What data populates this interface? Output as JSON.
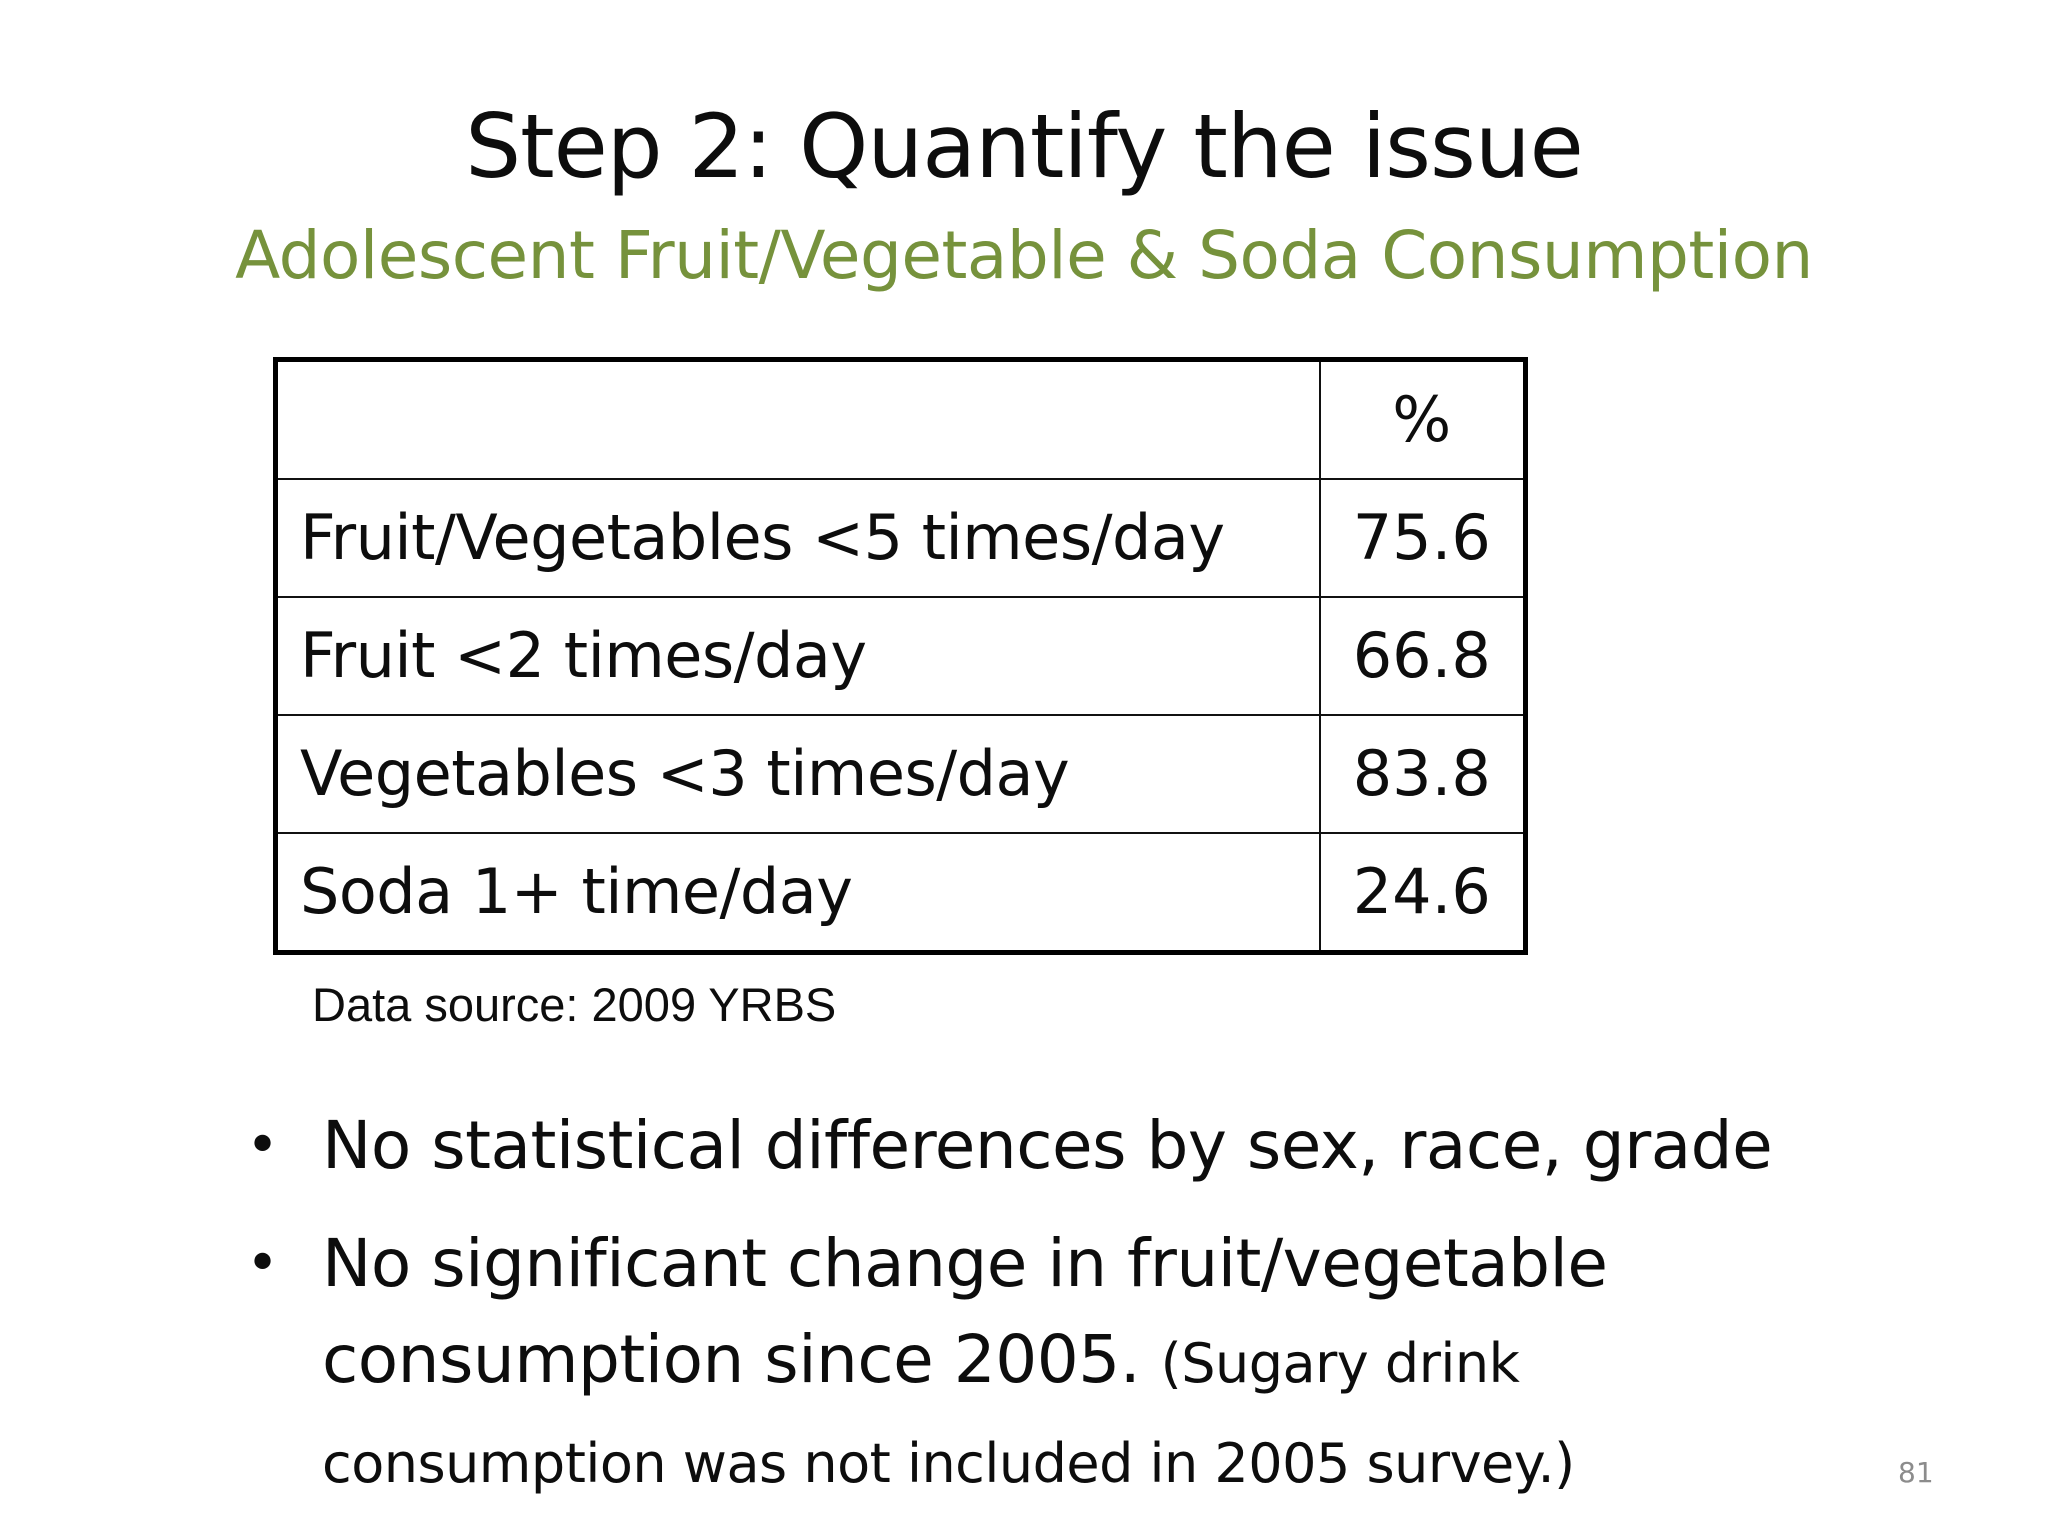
{
  "slide": {
    "title": "Step 2: Quantify the issue",
    "subtitle": "Adolescent Fruit/Vegetable & Soda Consumption",
    "page_number": "81"
  },
  "table": {
    "header": {
      "label": "",
      "value": "%"
    },
    "rows": [
      {
        "label": "Fruit/Vegetables <5 times/day",
        "value": "75.6"
      },
      {
        "label": "Fruit <2 times/day",
        "value": "66.8"
      },
      {
        "label": "Vegetables <3 times/day",
        "value": "83.8"
      },
      {
        "label": "Soda 1+ time/day",
        "value": "24.6"
      }
    ],
    "source": "Data source: 2009 YRBS"
  },
  "bullets": [
    {
      "text": "No statistical differences by sex, race, grade",
      "note": ""
    },
    {
      "text": "No significant change in fruit/vegetable consumption since 2005. ",
      "note": "(Sugary drink consumption was not included in 2005 survey.)"
    }
  ]
}
